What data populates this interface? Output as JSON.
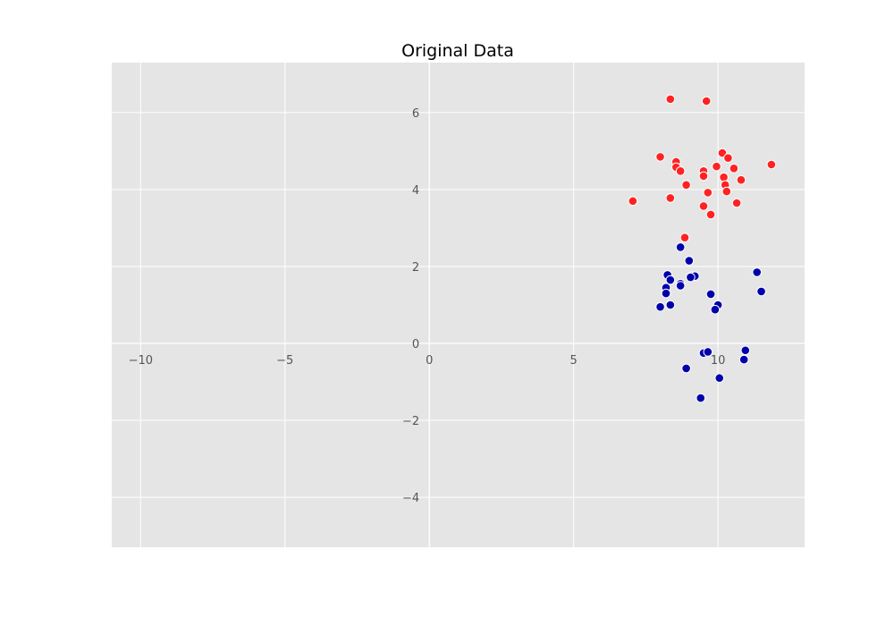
{
  "chart_data": {
    "type": "scatter",
    "title": "Original Data",
    "xlabel": "",
    "ylabel": "",
    "xlim": [
      -11,
      13
    ],
    "ylim": [
      -5.3,
      7.3
    ],
    "xticks": [
      -10,
      -5,
      0,
      5,
      10
    ],
    "yticks": [
      -4,
      -2,
      0,
      2,
      4,
      6
    ],
    "xtick_labels": [
      "−10",
      "−5",
      "0",
      "5",
      "10"
    ],
    "ytick_labels": [
      "−4",
      "−2",
      "0",
      "2",
      "4",
      "6"
    ],
    "grid": true,
    "axes_through_origin": true,
    "colors": {
      "plot_background": "#e5e5e5",
      "grid": "#ffffff",
      "marker_edge": "#ffffff"
    },
    "series": [
      {
        "color": "#ff2222",
        "x": [
          8.35,
          9.6,
          8.0,
          8.55,
          8.55,
          8.7,
          10.15,
          10.35,
          9.95,
          10.55,
          11.85,
          9.5,
          9.5,
          10.2,
          10.8,
          8.9,
          10.25,
          9.65,
          10.3,
          7.05,
          8.35,
          10.65,
          9.5,
          9.75,
          8.85
        ],
        "y": [
          6.35,
          6.3,
          4.85,
          4.72,
          4.58,
          4.48,
          4.95,
          4.82,
          4.6,
          4.55,
          4.65,
          4.48,
          4.35,
          4.32,
          4.25,
          4.12,
          4.12,
          3.92,
          3.95,
          3.7,
          3.78,
          3.65,
          3.57,
          3.35,
          2.75
        ]
      },
      {
        "color": "#0000aa",
        "x": [
          8.7,
          9.0,
          8.25,
          8.35,
          9.1,
          9.2,
          9.05,
          8.7,
          8.7,
          8.2,
          8.2,
          9.75,
          11.35,
          11.5,
          8.0,
          8.35,
          10.0,
          9.9,
          10.95,
          9.5,
          9.65,
          10.9,
          8.9,
          10.05,
          9.4
        ],
        "y": [
          2.5,
          2.15,
          1.78,
          1.65,
          1.75,
          1.75,
          1.72,
          1.55,
          1.5,
          1.45,
          1.3,
          1.28,
          1.85,
          1.35,
          0.95,
          1.0,
          1.0,
          0.88,
          -0.18,
          -0.25,
          -0.22,
          -0.42,
          -0.65,
          -0.9,
          -1.42
        ]
      }
    ]
  }
}
